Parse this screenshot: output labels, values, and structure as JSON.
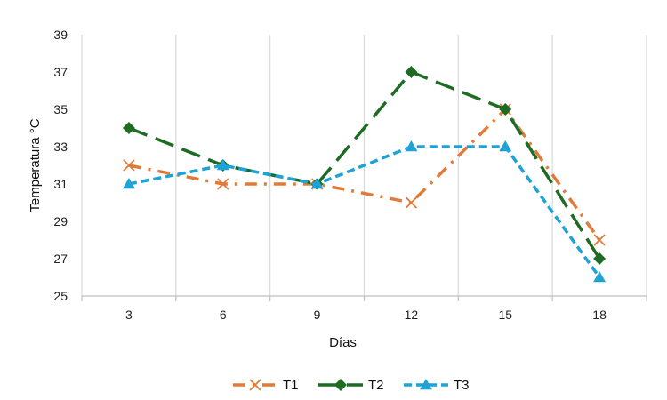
{
  "chart_data": {
    "type": "line",
    "title": "",
    "xlabel": "Días",
    "ylabel": "Temperatura °C",
    "categories": [
      "3",
      "6",
      "9",
      "12",
      "15",
      "18"
    ],
    "x": [
      3,
      6,
      9,
      12,
      15,
      18
    ],
    "ylim": [
      25,
      39
    ],
    "yticks": [
      25,
      27,
      29,
      31,
      33,
      35,
      37,
      39
    ],
    "grid": "vertical",
    "legend_position": "bottom",
    "series": [
      {
        "name": "T1",
        "values": [
          32,
          31,
          31,
          30,
          35,
          28
        ],
        "color": "#E07B39",
        "marker": "x",
        "dash": "dash-dot"
      },
      {
        "name": "T2",
        "values": [
          34,
          32,
          31,
          37,
          35,
          27
        ],
        "color": "#1E6B24",
        "marker": "diamond",
        "dash": "long-dash"
      },
      {
        "name": "T3",
        "values": [
          31,
          32,
          31,
          33,
          33,
          26
        ],
        "color": "#1FA2D6",
        "marker": "triangle",
        "dash": "dash"
      }
    ]
  }
}
